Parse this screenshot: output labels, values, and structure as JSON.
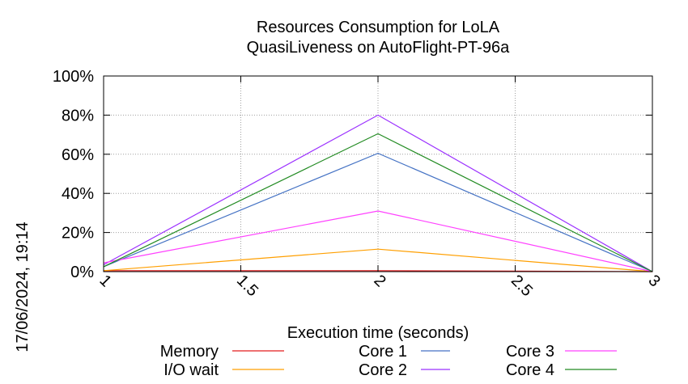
{
  "chart_data": {
    "type": "line",
    "title": [
      "Resources Consumption for LoLA",
      "QuasiLiveness on AutoFlight-PT-96a"
    ],
    "xlabel": "Execution time (seconds)",
    "ylabel": "",
    "timestamp": "17/06/2024, 19:14",
    "xlim": [
      1,
      3
    ],
    "ylim": [
      0,
      100
    ],
    "x_ticks": [
      1,
      1.5,
      2,
      2.5,
      3
    ],
    "x_tick_labels": [
      "1",
      "1.5",
      "2",
      "2.5",
      "3"
    ],
    "y_ticks": [
      0,
      20,
      40,
      60,
      80,
      100
    ],
    "y_tick_labels": [
      "0%",
      "20%",
      "40%",
      "60%",
      "80%",
      "100%"
    ],
    "grid": true,
    "legend_position": "bottom",
    "x": [
      1,
      2,
      3
    ],
    "series": [
      {
        "name": "Memory",
        "color": "#e41a1c",
        "values": [
          0.5,
          0.5,
          0
        ]
      },
      {
        "name": "I/O wait",
        "color": "#ff9f00",
        "values": [
          0.5,
          11.5,
          0
        ]
      },
      {
        "name": "Core 1",
        "color": "#4472c4",
        "values": [
          2.5,
          60.5,
          0
        ]
      },
      {
        "name": "Core 2",
        "color": "#9b30ff",
        "values": [
          3.5,
          80,
          0
        ]
      },
      {
        "name": "Core 3",
        "color": "#ff40ff",
        "values": [
          4.5,
          31,
          0
        ]
      },
      {
        "name": "Core 4",
        "color": "#228b22",
        "values": [
          2.5,
          70.5,
          0
        ]
      }
    ]
  }
}
